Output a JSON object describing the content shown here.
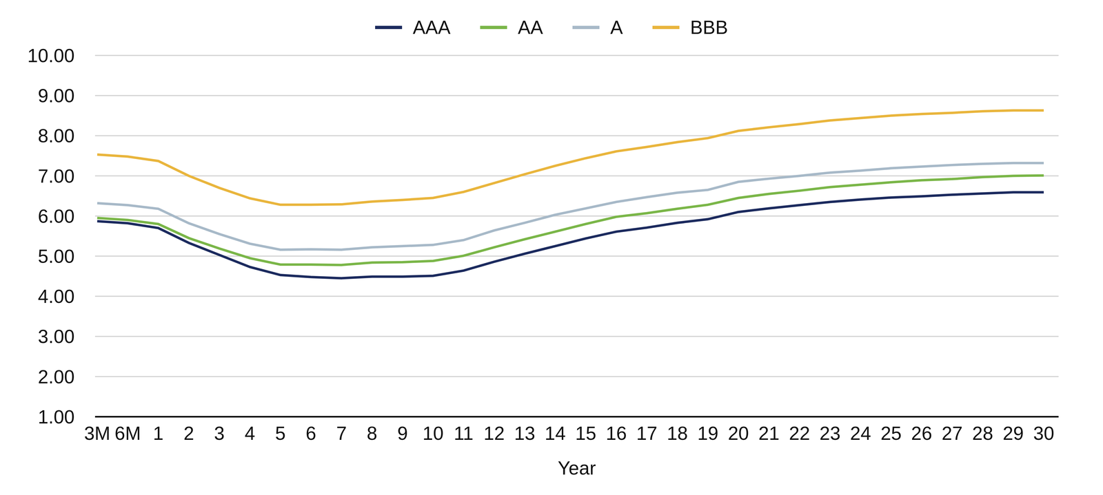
{
  "chart_data": {
    "type": "line",
    "x_label": "Year",
    "categories": [
      "3M",
      "6M",
      "1",
      "2",
      "3",
      "4",
      "5",
      "6",
      "7",
      "8",
      "9",
      "10",
      "11",
      "12",
      "13",
      "14",
      "15",
      "16",
      "17",
      "18",
      "19",
      "20",
      "21",
      "22",
      "23",
      "24",
      "25",
      "26",
      "27",
      "28",
      "29",
      "30"
    ],
    "series": [
      {
        "name": "AAA",
        "color": "#1b2a5e",
        "values": [
          5.87,
          5.82,
          5.7,
          5.33,
          5.03,
          4.73,
          4.53,
          4.48,
          4.45,
          4.49,
          4.49,
          4.51,
          4.64,
          4.86,
          5.06,
          5.25,
          5.44,
          5.61,
          5.71,
          5.83,
          5.92,
          6.1,
          6.19,
          6.27,
          6.35,
          6.41,
          6.46,
          6.49,
          6.53,
          6.56,
          6.59,
          6.59
        ]
      },
      {
        "name": "AA",
        "color": "#7ab648",
        "values": [
          5.95,
          5.9,
          5.8,
          5.45,
          5.19,
          4.95,
          4.79,
          4.79,
          4.78,
          4.84,
          4.85,
          4.88,
          5.01,
          5.22,
          5.42,
          5.61,
          5.8,
          5.98,
          6.07,
          6.18,
          6.28,
          6.45,
          6.55,
          6.63,
          6.72,
          6.78,
          6.84,
          6.89,
          6.92,
          6.97,
          7.0,
          7.01
        ]
      },
      {
        "name": "A",
        "color": "#a7b9c8",
        "values": [
          6.32,
          6.27,
          6.18,
          5.82,
          5.55,
          5.31,
          5.16,
          5.17,
          5.16,
          5.22,
          5.25,
          5.28,
          5.4,
          5.64,
          5.83,
          6.03,
          6.19,
          6.35,
          6.47,
          6.58,
          6.65,
          6.85,
          6.93,
          7.0,
          7.08,
          7.13,
          7.19,
          7.23,
          7.27,
          7.3,
          7.32,
          7.32
        ]
      },
      {
        "name": "BBB",
        "color": "#e9b53c",
        "values": [
          7.53,
          7.48,
          7.37,
          7.0,
          6.7,
          6.44,
          6.28,
          6.28,
          6.29,
          6.36,
          6.4,
          6.45,
          6.6,
          6.82,
          7.04,
          7.25,
          7.44,
          7.61,
          7.72,
          7.84,
          7.94,
          8.12,
          8.21,
          8.29,
          8.38,
          8.44,
          8.5,
          8.54,
          8.57,
          8.61,
          8.63,
          8.63
        ]
      }
    ],
    "ylim": [
      1,
      10
    ],
    "yticks": [
      {
        "value": 1,
        "label": "1.00"
      },
      {
        "value": 2,
        "label": "2.00"
      },
      {
        "value": 3,
        "label": "3.00"
      },
      {
        "value": 4,
        "label": "4.00"
      },
      {
        "value": 5,
        "label": "5.00"
      },
      {
        "value": 6,
        "label": "6.00"
      },
      {
        "value": 7,
        "label": "7.00"
      },
      {
        "value": 8,
        "label": "8.00"
      },
      {
        "value": 9,
        "label": "9.00"
      },
      {
        "value": 10,
        "label": "10.00"
      }
    ],
    "grid": true,
    "legend": "top"
  }
}
